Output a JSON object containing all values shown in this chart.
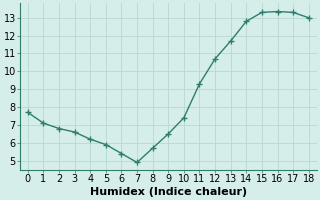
{
  "x": [
    0,
    1,
    2,
    3,
    4,
    5,
    6,
    7,
    8,
    9,
    10,
    11,
    12,
    13,
    14,
    15,
    16,
    17,
    18
  ],
  "y": [
    7.7,
    7.1,
    6.8,
    6.6,
    6.2,
    5.9,
    5.4,
    4.9,
    5.7,
    6.5,
    7.4,
    9.3,
    10.7,
    11.7,
    12.8,
    13.3,
    13.35,
    13.3,
    13.0
  ],
  "line_color": "#2e7d6e",
  "marker_color": "#2e7d6e",
  "background_color": "#d6eeea",
  "grid_color": "#b8d8d0",
  "xlabel": "Humidex (Indice chaleur)",
  "xlabel_fontsize": 8,
  "xlim": [
    -0.5,
    18.5
  ],
  "ylim": [
    4.5,
    13.8
  ],
  "yticks": [
    5,
    6,
    7,
    8,
    9,
    10,
    11,
    12,
    13
  ],
  "xticks": [
    0,
    1,
    2,
    3,
    4,
    5,
    6,
    7,
    8,
    9,
    10,
    11,
    12,
    13,
    14,
    15,
    16,
    17,
    18
  ],
  "tick_fontsize": 7,
  "marker_size": 4,
  "line_width": 1.0
}
